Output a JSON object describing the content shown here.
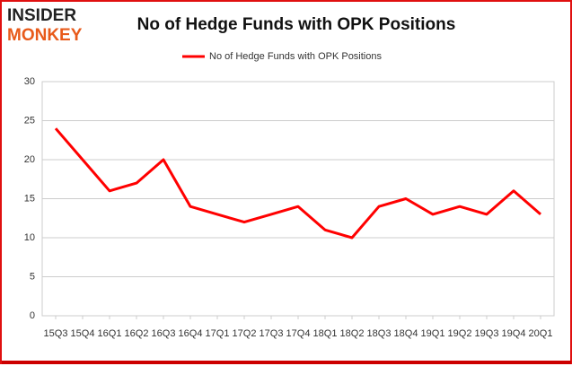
{
  "logo": {
    "line1": "INSIDER",
    "line2": "MONKEY"
  },
  "chart_data": {
    "type": "line",
    "title": "No of Hedge Funds with OPK Positions",
    "categories": [
      "15Q3",
      "15Q4",
      "16Q1",
      "16Q2",
      "16Q3",
      "16Q4",
      "17Q1",
      "17Q2",
      "17Q3",
      "17Q4",
      "18Q1",
      "18Q2",
      "18Q3",
      "18Q4",
      "19Q1",
      "19Q2",
      "19Q3",
      "19Q4",
      "20Q1"
    ],
    "series": [
      {
        "name": "No of Hedge Funds with OPK Positions",
        "color": "#ff0000",
        "values": [
          24,
          20,
          16,
          17,
          20,
          14,
          13,
          12,
          13,
          14,
          11,
          10,
          14,
          15,
          13,
          14,
          13,
          16,
          13
        ]
      }
    ],
    "ylim": [
      0,
      30
    ],
    "yticks": [
      0,
      5,
      10,
      15,
      20,
      25,
      30
    ],
    "grid": true,
    "legend": "top"
  }
}
